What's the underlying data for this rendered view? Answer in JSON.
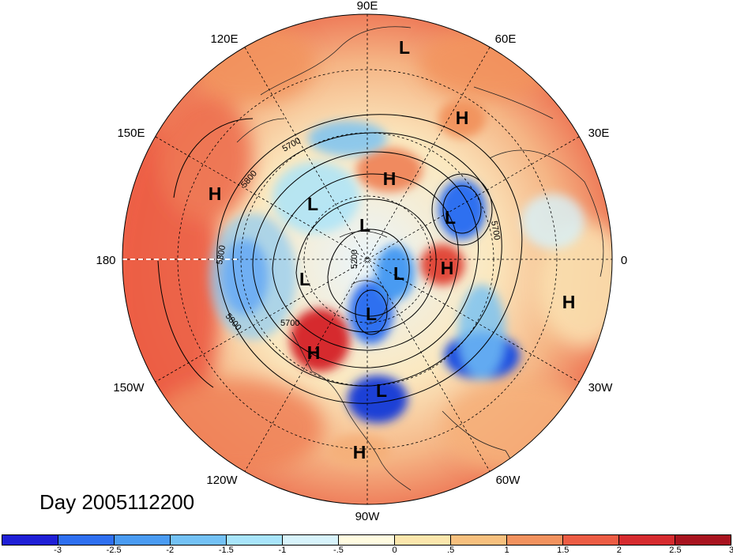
{
  "title": "Day 2005112200",
  "longitude_labels": {
    "lon_90e": "90E",
    "lon_60e": "60E",
    "lon_30e": "30E",
    "lon_0": "0",
    "lon_30w": "30W",
    "lon_60w": "60W",
    "lon_90w": "90W",
    "lon_120w": "120W",
    "lon_150w": "150W",
    "lon_180": "180",
    "lon_150e": "150E",
    "lon_120e": "120E"
  },
  "contour_labels": [
    "5700",
    "5800",
    "5800",
    "5700",
    "5200",
    "5800",
    "5700"
  ],
  "pressure_systems": [
    {
      "type": "L",
      "label": "L"
    },
    {
      "type": "H",
      "label": "H"
    },
    {
      "type": "H",
      "label": "H"
    },
    {
      "type": "H",
      "label": "H"
    },
    {
      "type": "L",
      "label": "L"
    },
    {
      "type": "L",
      "label": "L"
    },
    {
      "type": "L",
      "label": "L"
    },
    {
      "type": "H",
      "label": "H"
    },
    {
      "type": "L",
      "label": "L"
    },
    {
      "type": "H",
      "label": "H"
    },
    {
      "type": "L",
      "label": "L"
    },
    {
      "type": "L",
      "label": "L"
    },
    {
      "type": "H",
      "label": "H"
    },
    {
      "type": "L",
      "label": "L"
    },
    {
      "type": "H",
      "label": "H"
    }
  ],
  "colorbar": {
    "colors": [
      "#1f1fd6",
      "#2e6ff0",
      "#4a9bf2",
      "#73c1f5",
      "#a8e4fa",
      "#d7f3fb",
      "#fffbe0",
      "#fbe6ac",
      "#f7c07e",
      "#f2925e",
      "#ec5c44",
      "#d62b2f",
      "#a8131f"
    ],
    "labels": [
      "-3",
      "-2.5",
      "-2",
      "-1.5",
      "-1",
      "-.5",
      "0",
      ".5",
      "1",
      "1.5",
      "2",
      "2.5",
      "3"
    ]
  },
  "legend_colors": {
    "warm_far": "#f06a4a",
    "warm_mid": "#f3a070",
    "warm_light": "#f8d49c",
    "neutral": "#fdf4dc",
    "cool_light": "#d5eefb",
    "cool_mid": "#8ccaf3",
    "cool_deep": "#2c5fe6"
  }
}
